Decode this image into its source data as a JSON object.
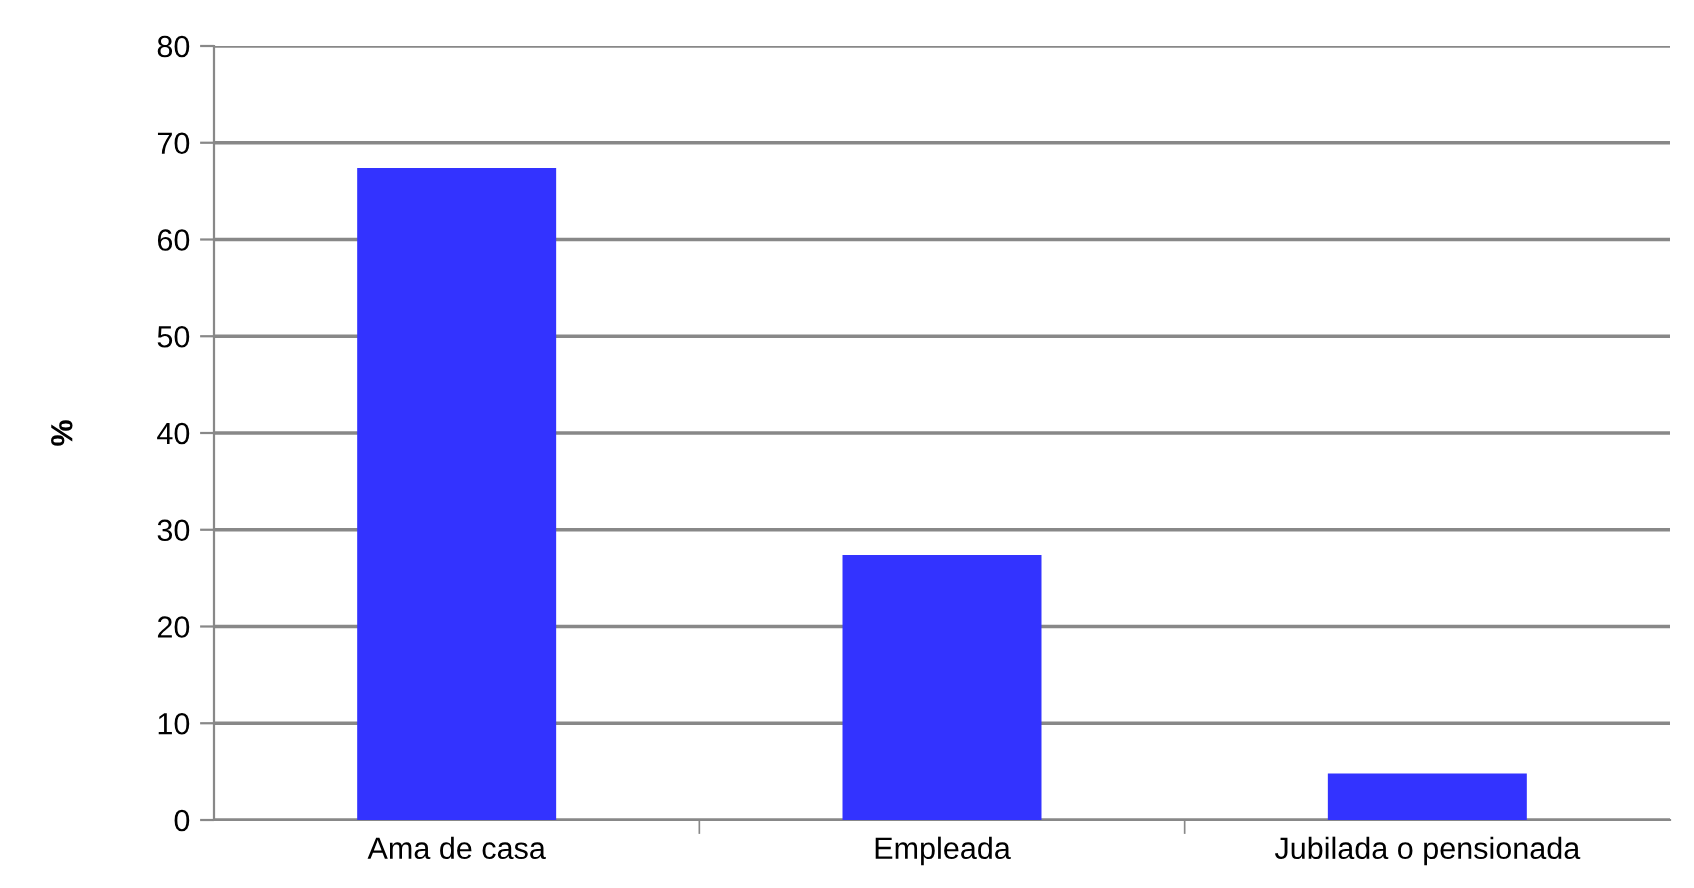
{
  "chart_data": {
    "type": "bar",
    "ylabel": "%",
    "categories": [
      "Ama de casa",
      "Empleada",
      "Jubilada o pensionada"
    ],
    "values": [
      67.4,
      27.4,
      4.8
    ],
    "color": "#3333ff",
    "ylim": [
      0,
      80
    ],
    "yticks": [
      0,
      10,
      20,
      30,
      40,
      50,
      60,
      70,
      80
    ],
    "grid": "y"
  }
}
